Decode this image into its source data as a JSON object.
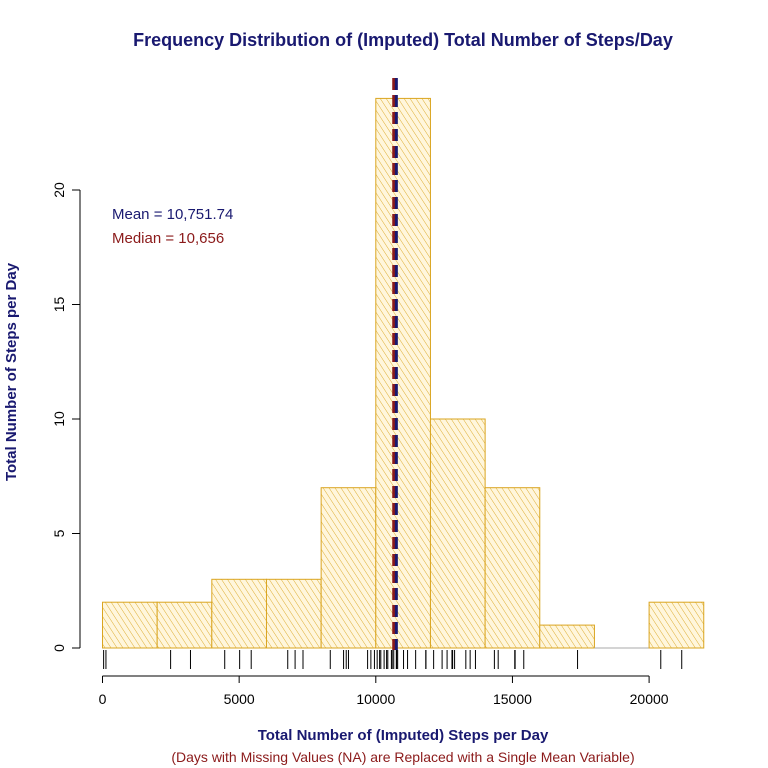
{
  "chart_data": {
    "type": "bar",
    "title": "Frequency Distribution of (Imputed) Total Number of Steps/Day",
    "xlabel": "Total Number of (Imputed) Steps per Day",
    "subtitle": "(Days with Missing Values (NA) are Replaced with a Single Mean Variable)",
    "ylabel": "Total Number of Steps per Day",
    "bins": [
      {
        "start": 0,
        "end": 2000,
        "count": 2
      },
      {
        "start": 2000,
        "end": 4000,
        "count": 2
      },
      {
        "start": 4000,
        "end": 6000,
        "count": 3
      },
      {
        "start": 6000,
        "end": 8000,
        "count": 3
      },
      {
        "start": 8000,
        "end": 10000,
        "count": 7
      },
      {
        "start": 10000,
        "end": 12000,
        "count": 24
      },
      {
        "start": 12000,
        "end": 14000,
        "count": 10
      },
      {
        "start": 14000,
        "end": 16000,
        "count": 7
      },
      {
        "start": 16000,
        "end": 18000,
        "count": 1
      },
      {
        "start": 18000,
        "end": 20000,
        "count": 0
      },
      {
        "start": 20000,
        "end": 22000,
        "count": 2
      }
    ],
    "xlim": [
      0,
      22000
    ],
    "ylim": [
      0,
      24
    ],
    "x_ticks": [
      0,
      5000,
      10000,
      15000,
      20000
    ],
    "y_ticks": [
      0,
      5,
      10,
      15,
      20
    ],
    "mean": 10751.74,
    "median": 10656,
    "mean_label": "Mean = 10,751.74",
    "median_label": "Median = 10,656",
    "rug": [
      41,
      126,
      2492,
      3219,
      4472,
      5018,
      5441,
      6778,
      7047,
      7336,
      8334,
      8821,
      8918,
      9000,
      9700,
      9820,
      9950,
      10050,
      10139,
      10183,
      10304,
      10395,
      10439,
      10571,
      10600,
      10656,
      10751,
      10765,
      10800,
      11015,
      11162,
      11458,
      11829,
      11834,
      12116,
      12426,
      12608,
      12787,
      12811,
      12883,
      13294,
      13452,
      13646,
      14339,
      14478,
      15084,
      15098,
      15414,
      17382,
      20427,
      21194
    ],
    "grid": false,
    "bar_fill": "#fff6dc",
    "bar_hatch_color": "#daa520",
    "bar_border_color": "#daa520",
    "mean_color": "#191970",
    "median_color": "#8b1a1a"
  }
}
